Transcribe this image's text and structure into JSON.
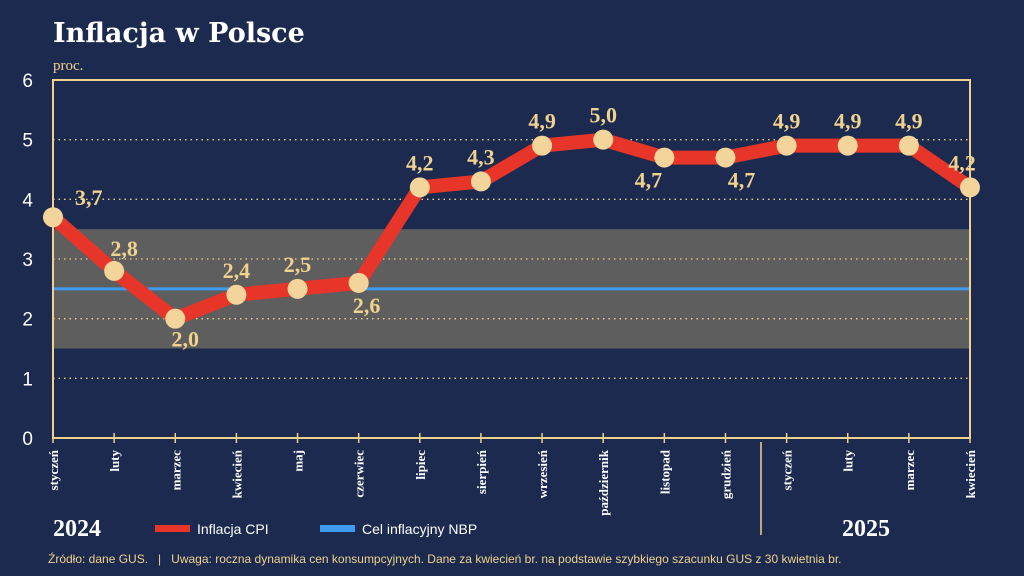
{
  "chart_data": {
    "type": "line",
    "title": "Inflacja w Polsce",
    "ylabel": "proc.",
    "ylim": [
      0,
      6
    ],
    "yticks": [
      "0",
      "1",
      "2",
      "3",
      "4",
      "5",
      "6"
    ],
    "categories": [
      "styczeń",
      "luty",
      "marzec",
      "kwiecień",
      "maj",
      "czerwiec",
      "lipiec",
      "sierpień",
      "wrzesień",
      "październik",
      "listopad",
      "grudzień",
      "styczeń",
      "luty",
      "marzec",
      "kwiecień"
    ],
    "years": [
      "2024",
      "2025"
    ],
    "series": [
      {
        "name": "Inflacja CPI",
        "color": "#e8352a",
        "values": [
          3.7,
          2.8,
          2.0,
          2.4,
          2.5,
          2.6,
          4.2,
          4.3,
          4.9,
          5.0,
          4.7,
          4.7,
          4.9,
          4.9,
          4.9,
          4.2
        ],
        "labels": [
          "3,7",
          "2,8",
          "2,0",
          "2,4",
          "2,5",
          "2,6",
          "4,2",
          "4,3",
          "4,9",
          "5,0",
          "4,7",
          "4,7",
          "4,9",
          "4,9",
          "4,9",
          "4,2"
        ]
      },
      {
        "name": "Cel inflacyjny NBP",
        "color": "#3f9bf0",
        "value": 2.5,
        "tolerance_band": [
          1.5,
          3.5
        ]
      }
    ],
    "grid": "dotted horizontal",
    "legend": "bottom"
  },
  "footer": "Źródło: dane GUS.   |   Uwaga: roczna dynamika cen konsumpcyjnych. Dane za kwiecień br. na podstawie szybkiego szacunku GUS z 30 kwietnia br.",
  "colors": {
    "background": "#1b2a4e",
    "gold": "#f0d28e",
    "band": "#5e5e5e",
    "marker": "#f3d49a"
  }
}
